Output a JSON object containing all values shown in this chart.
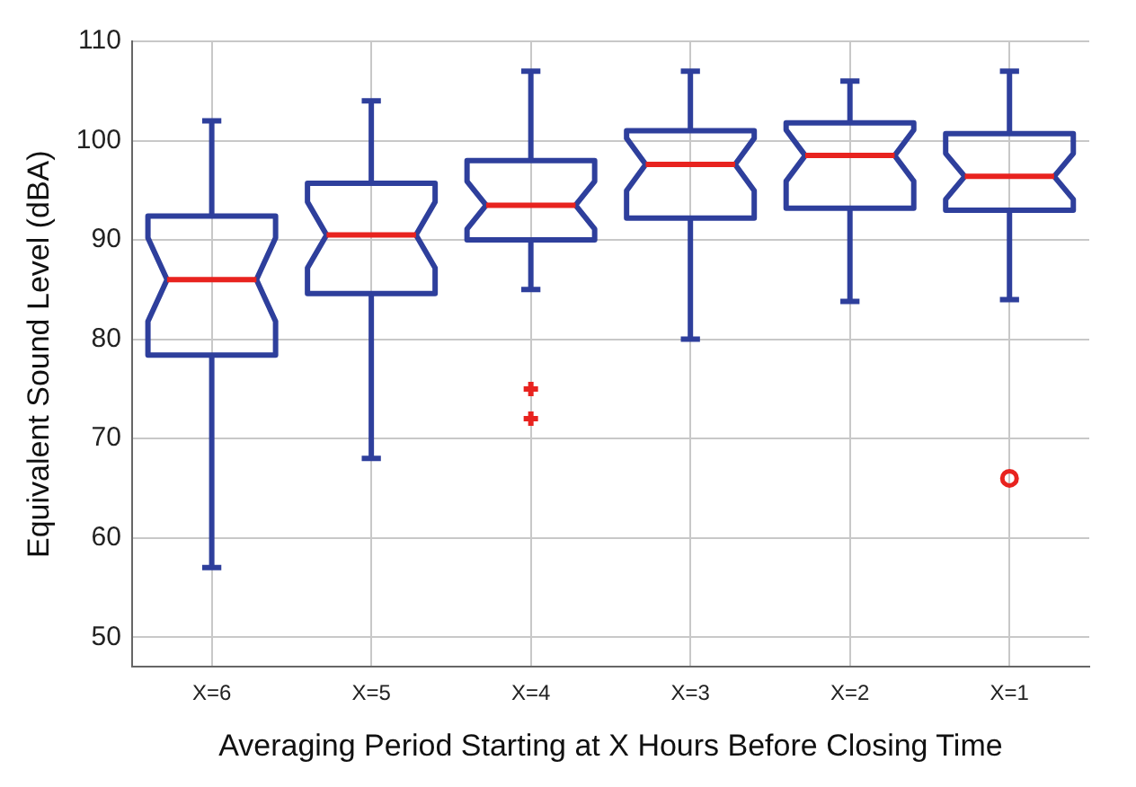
{
  "chart_data": {
    "type": "box",
    "xlabel": "Averaging Period Starting at X Hours Before Closing Time",
    "ylabel": "Equivalent Sound Level (dBA)",
    "categories": [
      "X=6",
      "X=5",
      "X=4",
      "X=3",
      "X=2",
      "X=1"
    ],
    "series": [
      {
        "color": "#2e3f9c",
        "boxes": [
          {
            "low": 57,
            "q1": 78.4,
            "median": 86,
            "q3": 92.4,
            "high": 102
          },
          {
            "low": 68,
            "q1": 84.6,
            "median": 90.5,
            "q3": 95.7,
            "high": 104
          },
          {
            "low": 85,
            "q1": 90,
            "median": 93.5,
            "q3": 98,
            "high": 107,
            "outliers": [
              75,
              72
            ]
          },
          {
            "low": 80,
            "q1": 92.2,
            "median": 97.6,
            "q3": 101,
            "high": 107
          },
          {
            "low": 83.8,
            "q1": 93.2,
            "median": 98.5,
            "q3": 101.8,
            "high": 106
          },
          {
            "low": 84,
            "q1": 93,
            "median": 96.4,
            "q3": 100.7,
            "high": 107
          }
        ]
      },
      {
        "type": "scatter",
        "x": [
          "X=1"
        ],
        "values": [
          66
        ],
        "color": "#e8231f",
        "marker": "circle"
      }
    ],
    "ylim": [
      47,
      110
    ],
    "yticks": [
      50,
      60,
      70,
      80,
      90,
      100,
      110
    ],
    "grid": true,
    "marker": "cross"
  }
}
